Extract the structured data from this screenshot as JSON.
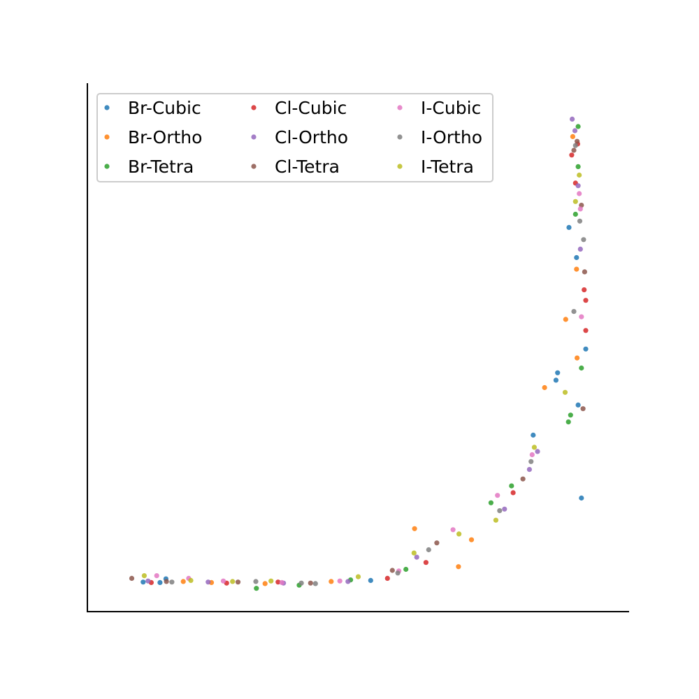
{
  "chart_data": {
    "type": "scatter",
    "title": "",
    "xlabel": "",
    "ylabel": "",
    "xlim": [
      0,
      100
    ],
    "ylim": [
      0,
      100
    ],
    "grid": false,
    "axis_ticks": false,
    "spines": [
      "left",
      "bottom"
    ],
    "legend": {
      "placement": "top-left",
      "columns": 3
    },
    "curve": "L-shaped band of points: a near-horizontal run along the bottom from x≈8 to x≈60, bending upward into a near-vertical run near x≈90 up to y≈95",
    "series": [
      {
        "name": "Br-Cubic",
        "color": "#1f77b4",
        "points": [
          [
            10.3,
            5.6
          ],
          [
            13.4,
            5.5
          ],
          [
            14.5,
            6.2
          ],
          [
            52.3,
            5.9
          ],
          [
            82.3,
            33.4
          ],
          [
            86.5,
            43.8
          ],
          [
            86.8,
            45.2
          ],
          [
            88.9,
            72.7
          ],
          [
            90.3,
            67.0
          ],
          [
            90.6,
            39.1
          ],
          [
            91.2,
            21.5
          ],
          [
            92.0,
            49.7
          ]
        ]
      },
      {
        "name": "Br-Ortho",
        "color": "#ff7f0e",
        "points": [
          [
            17.7,
            5.7
          ],
          [
            22.9,
            5.5
          ],
          [
            32.8,
            5.3
          ],
          [
            45.0,
            5.7
          ],
          [
            60.4,
            15.7
          ],
          [
            68.5,
            8.5
          ],
          [
            70.9,
            13.6
          ],
          [
            84.4,
            42.4
          ],
          [
            88.3,
            55.3
          ],
          [
            89.6,
            89.9
          ],
          [
            90.3,
            64.8
          ],
          [
            90.4,
            48.0
          ]
        ]
      },
      {
        "name": "Br-Tetra",
        "color": "#2ca02c",
        "points": [
          [
            31.2,
            4.4
          ],
          [
            39.1,
            5.0
          ],
          [
            48.6,
            6.0
          ],
          [
            58.8,
            8.0
          ],
          [
            74.5,
            20.6
          ],
          [
            78.3,
            23.8
          ],
          [
            88.8,
            35.9
          ],
          [
            90.1,
            75.2
          ],
          [
            90.6,
            84.2
          ],
          [
            91.2,
            46.1
          ],
          [
            90.6,
            91.8
          ],
          [
            89.2,
            37.2
          ]
        ]
      },
      {
        "name": "Br-Tetra",
        "color": "#2ca02c",
        "points": []
      },
      {
        "name": "Cl-Cubic",
        "color": "#d62728",
        "points": [
          [
            11.8,
            5.5
          ],
          [
            25.7,
            5.4
          ],
          [
            35.2,
            5.6
          ],
          [
            55.4,
            6.3
          ],
          [
            62.5,
            9.3
          ],
          [
            78.6,
            22.5
          ],
          [
            89.4,
            86.4
          ],
          [
            90.5,
            88.5
          ],
          [
            90.1,
            81.1
          ],
          [
            91.7,
            60.9
          ],
          [
            92.0,
            58.9
          ],
          [
            92.0,
            53.2
          ]
        ]
      },
      {
        "name": "Cl-Ortho",
        "color": "#9467bd",
        "points": [
          [
            11.2,
            5.8
          ],
          [
            22.3,
            5.6
          ],
          [
            36.2,
            5.4
          ],
          [
            48.1,
            5.7
          ],
          [
            60.8,
            10.3
          ],
          [
            77.0,
            19.4
          ],
          [
            81.6,
            26.9
          ],
          [
            83.1,
            30.3
          ],
          [
            90.6,
            80.6
          ],
          [
            89.5,
            93.2
          ],
          [
            90.0,
            91.0
          ],
          [
            91.0,
            68.6
          ]
        ]
      },
      {
        "name": "Cl-Tetra",
        "color": "#8c564b",
        "points": [
          [
            8.2,
            6.3
          ],
          [
            14.6,
            5.7
          ],
          [
            27.8,
            5.6
          ],
          [
            41.2,
            5.4
          ],
          [
            56.3,
            7.8
          ],
          [
            64.5,
            13.0
          ],
          [
            80.4,
            25.1
          ],
          [
            89.8,
            87.3
          ],
          [
            90.4,
            89.0
          ],
          [
            91.2,
            76.9
          ],
          [
            91.8,
            64.3
          ],
          [
            91.5,
            38.4
          ]
        ]
      },
      {
        "name": "I-Cubic",
        "color": "#e377c2",
        "points": [
          [
            12.8,
            6.8
          ],
          [
            18.7,
            6.3
          ],
          [
            25.1,
            5.8
          ],
          [
            35.9,
            5.5
          ],
          [
            46.6,
            5.8
          ],
          [
            57.5,
            7.7
          ],
          [
            67.5,
            15.5
          ],
          [
            75.7,
            22.0
          ],
          [
            82.1,
            29.7
          ],
          [
            90.8,
            79.1
          ],
          [
            91.0,
            76.2
          ],
          [
            91.2,
            55.8
          ]
        ]
      },
      {
        "name": "I-Ortho",
        "color": "#7f7f7f",
        "points": [
          [
            15.6,
            5.6
          ],
          [
            31.1,
            5.7
          ],
          [
            39.5,
            5.4
          ],
          [
            42.1,
            5.3
          ],
          [
            57.3,
            7.3
          ],
          [
            63.0,
            11.7
          ],
          [
            76.1,
            19.1
          ],
          [
            81.9,
            28.4
          ],
          [
            90.1,
            88.2
          ],
          [
            90.9,
            73.9
          ],
          [
            91.6,
            70.4
          ],
          [
            89.8,
            56.8
          ]
        ]
      },
      {
        "name": "I-Tetra",
        "color": "#bcbd22",
        "points": [
          [
            10.5,
            6.8
          ],
          [
            19.1,
            5.9
          ],
          [
            26.8,
            5.7
          ],
          [
            33.9,
            5.8
          ],
          [
            50.0,
            6.6
          ],
          [
            60.3,
            11.1
          ],
          [
            68.6,
            14.7
          ],
          [
            75.4,
            17.3
          ],
          [
            82.5,
            31.1
          ],
          [
            90.1,
            77.6
          ],
          [
            90.8,
            82.6
          ],
          [
            88.2,
            41.5
          ]
        ]
      }
    ]
  },
  "legend_items": [
    {
      "label": "Br-Cubic",
      "color": "#1f77b4"
    },
    {
      "label": "Br-Ortho",
      "color": "#ff7f0e"
    },
    {
      "label": "Br-Tetra",
      "color": "#2ca02c"
    },
    {
      "label": "Cl-Cubic",
      "color": "#d62728"
    },
    {
      "label": "Cl-Ortho",
      "color": "#9467bd"
    },
    {
      "label": "Cl-Tetra",
      "color": "#8c564b"
    },
    {
      "label": "I-Cubic",
      "color": "#e377c2"
    },
    {
      "label": "I-Ortho",
      "color": "#7f7f7f"
    },
    {
      "label": "I-Tetra",
      "color": "#bcbd22"
    }
  ]
}
